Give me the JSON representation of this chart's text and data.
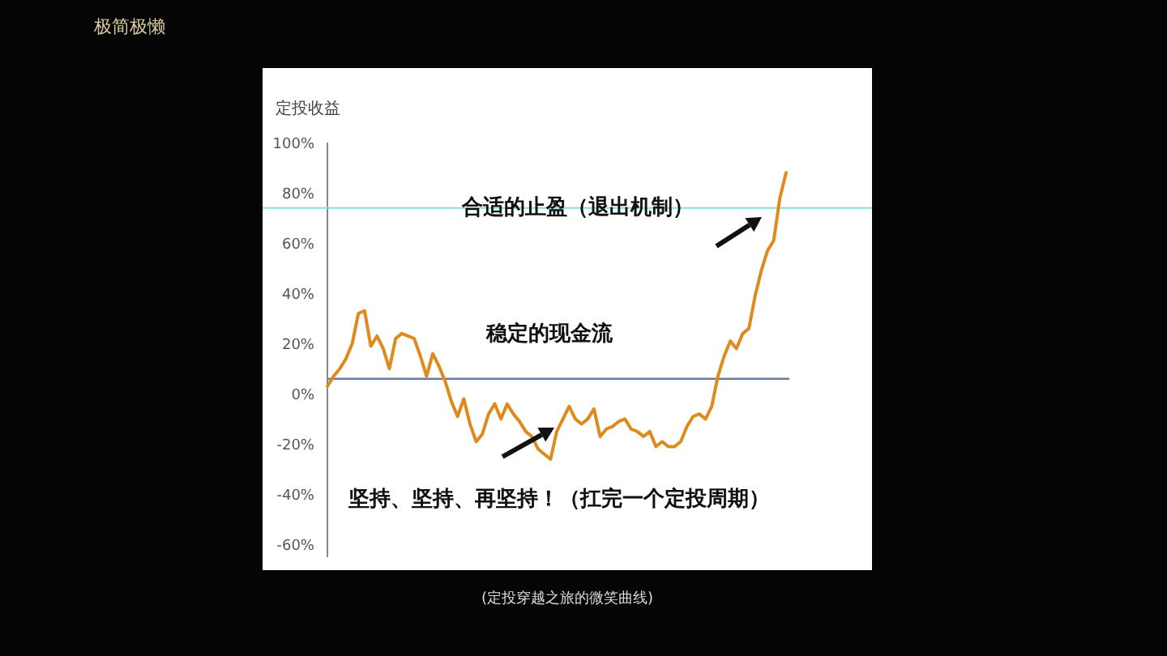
{
  "chart_data": {
    "type": "line",
    "ylabel": "定投收益",
    "categories": [
      null,
      null,
      null,
      null,
      null,
      null,
      null,
      null,
      null,
      null,
      null,
      null,
      null,
      null,
      null,
      null,
      null,
      null,
      null,
      null,
      null,
      null,
      null,
      null,
      null,
      null,
      null,
      null,
      null,
      null,
      null,
      null,
      null,
      null,
      null,
      null,
      null,
      null,
      null,
      null,
      null,
      null,
      null,
      null,
      null,
      null,
      null,
      null,
      null,
      null,
      null,
      null,
      null,
      null,
      null,
      null,
      null,
      null,
      null,
      null,
      null,
      null,
      null,
      null,
      null,
      null,
      null,
      null,
      null,
      null,
      null,
      null,
      null,
      null,
      null
    ],
    "series": [
      {
        "color": "#e08a1e",
        "values": [
          3,
          7,
          10,
          14,
          20,
          32,
          33,
          19,
          23,
          18,
          10,
          22,
          24,
          23,
          22,
          15,
          7,
          16,
          11,
          5,
          -3,
          -9,
          -2,
          -12,
          -19,
          -16,
          -8,
          -4,
          -10,
          -4,
          -8,
          -11,
          -15,
          -17,
          -22,
          -24,
          -26,
          -15,
          -10,
          -5,
          -10,
          -12,
          -10,
          -6,
          -17,
          -14,
          -13,
          -11,
          -10,
          -14,
          -15,
          -17,
          -15,
          -21,
          -19,
          -21,
          -21,
          -19,
          -13,
          -9,
          -8,
          -10,
          -5,
          7,
          15,
          21,
          18,
          24,
          26,
          39,
          49,
          57,
          61,
          78,
          88
        ]
      }
    ],
    "ylim": [
      -65,
      100
    ],
    "yticks": [
      {
        "value": 100,
        "label": "100%"
      },
      {
        "value": 80,
        "label": "80%"
      },
      {
        "value": 60,
        "label": "60%"
      },
      {
        "value": 40,
        "label": "40%"
      },
      {
        "value": 20,
        "label": "20%"
      },
      {
        "value": 0,
        "label": "0%"
      },
      {
        "value": -20,
        "label": "-20%"
      },
      {
        "value": -40,
        "label": "-40%"
      },
      {
        "value": -60,
        "label": "-60%"
      }
    ],
    "tick_labels": "y",
    "grid": false,
    "marker": "none",
    "line_style": "solid",
    "ref_lines": [
      {
        "axis": "y",
        "value": 74,
        "color": "#8adede"
      },
      {
        "axis": "y",
        "value": 6,
        "color": "#6b7b9b"
      }
    ],
    "annotations": [
      "合适的止盈（退出机制）",
      "稳定的现金流",
      "坚持、坚持、再坚持！（扛完一个定投周期）",
      "(定投穿越之旅的微笑曲线)",
      "极简极懒"
    ]
  }
}
